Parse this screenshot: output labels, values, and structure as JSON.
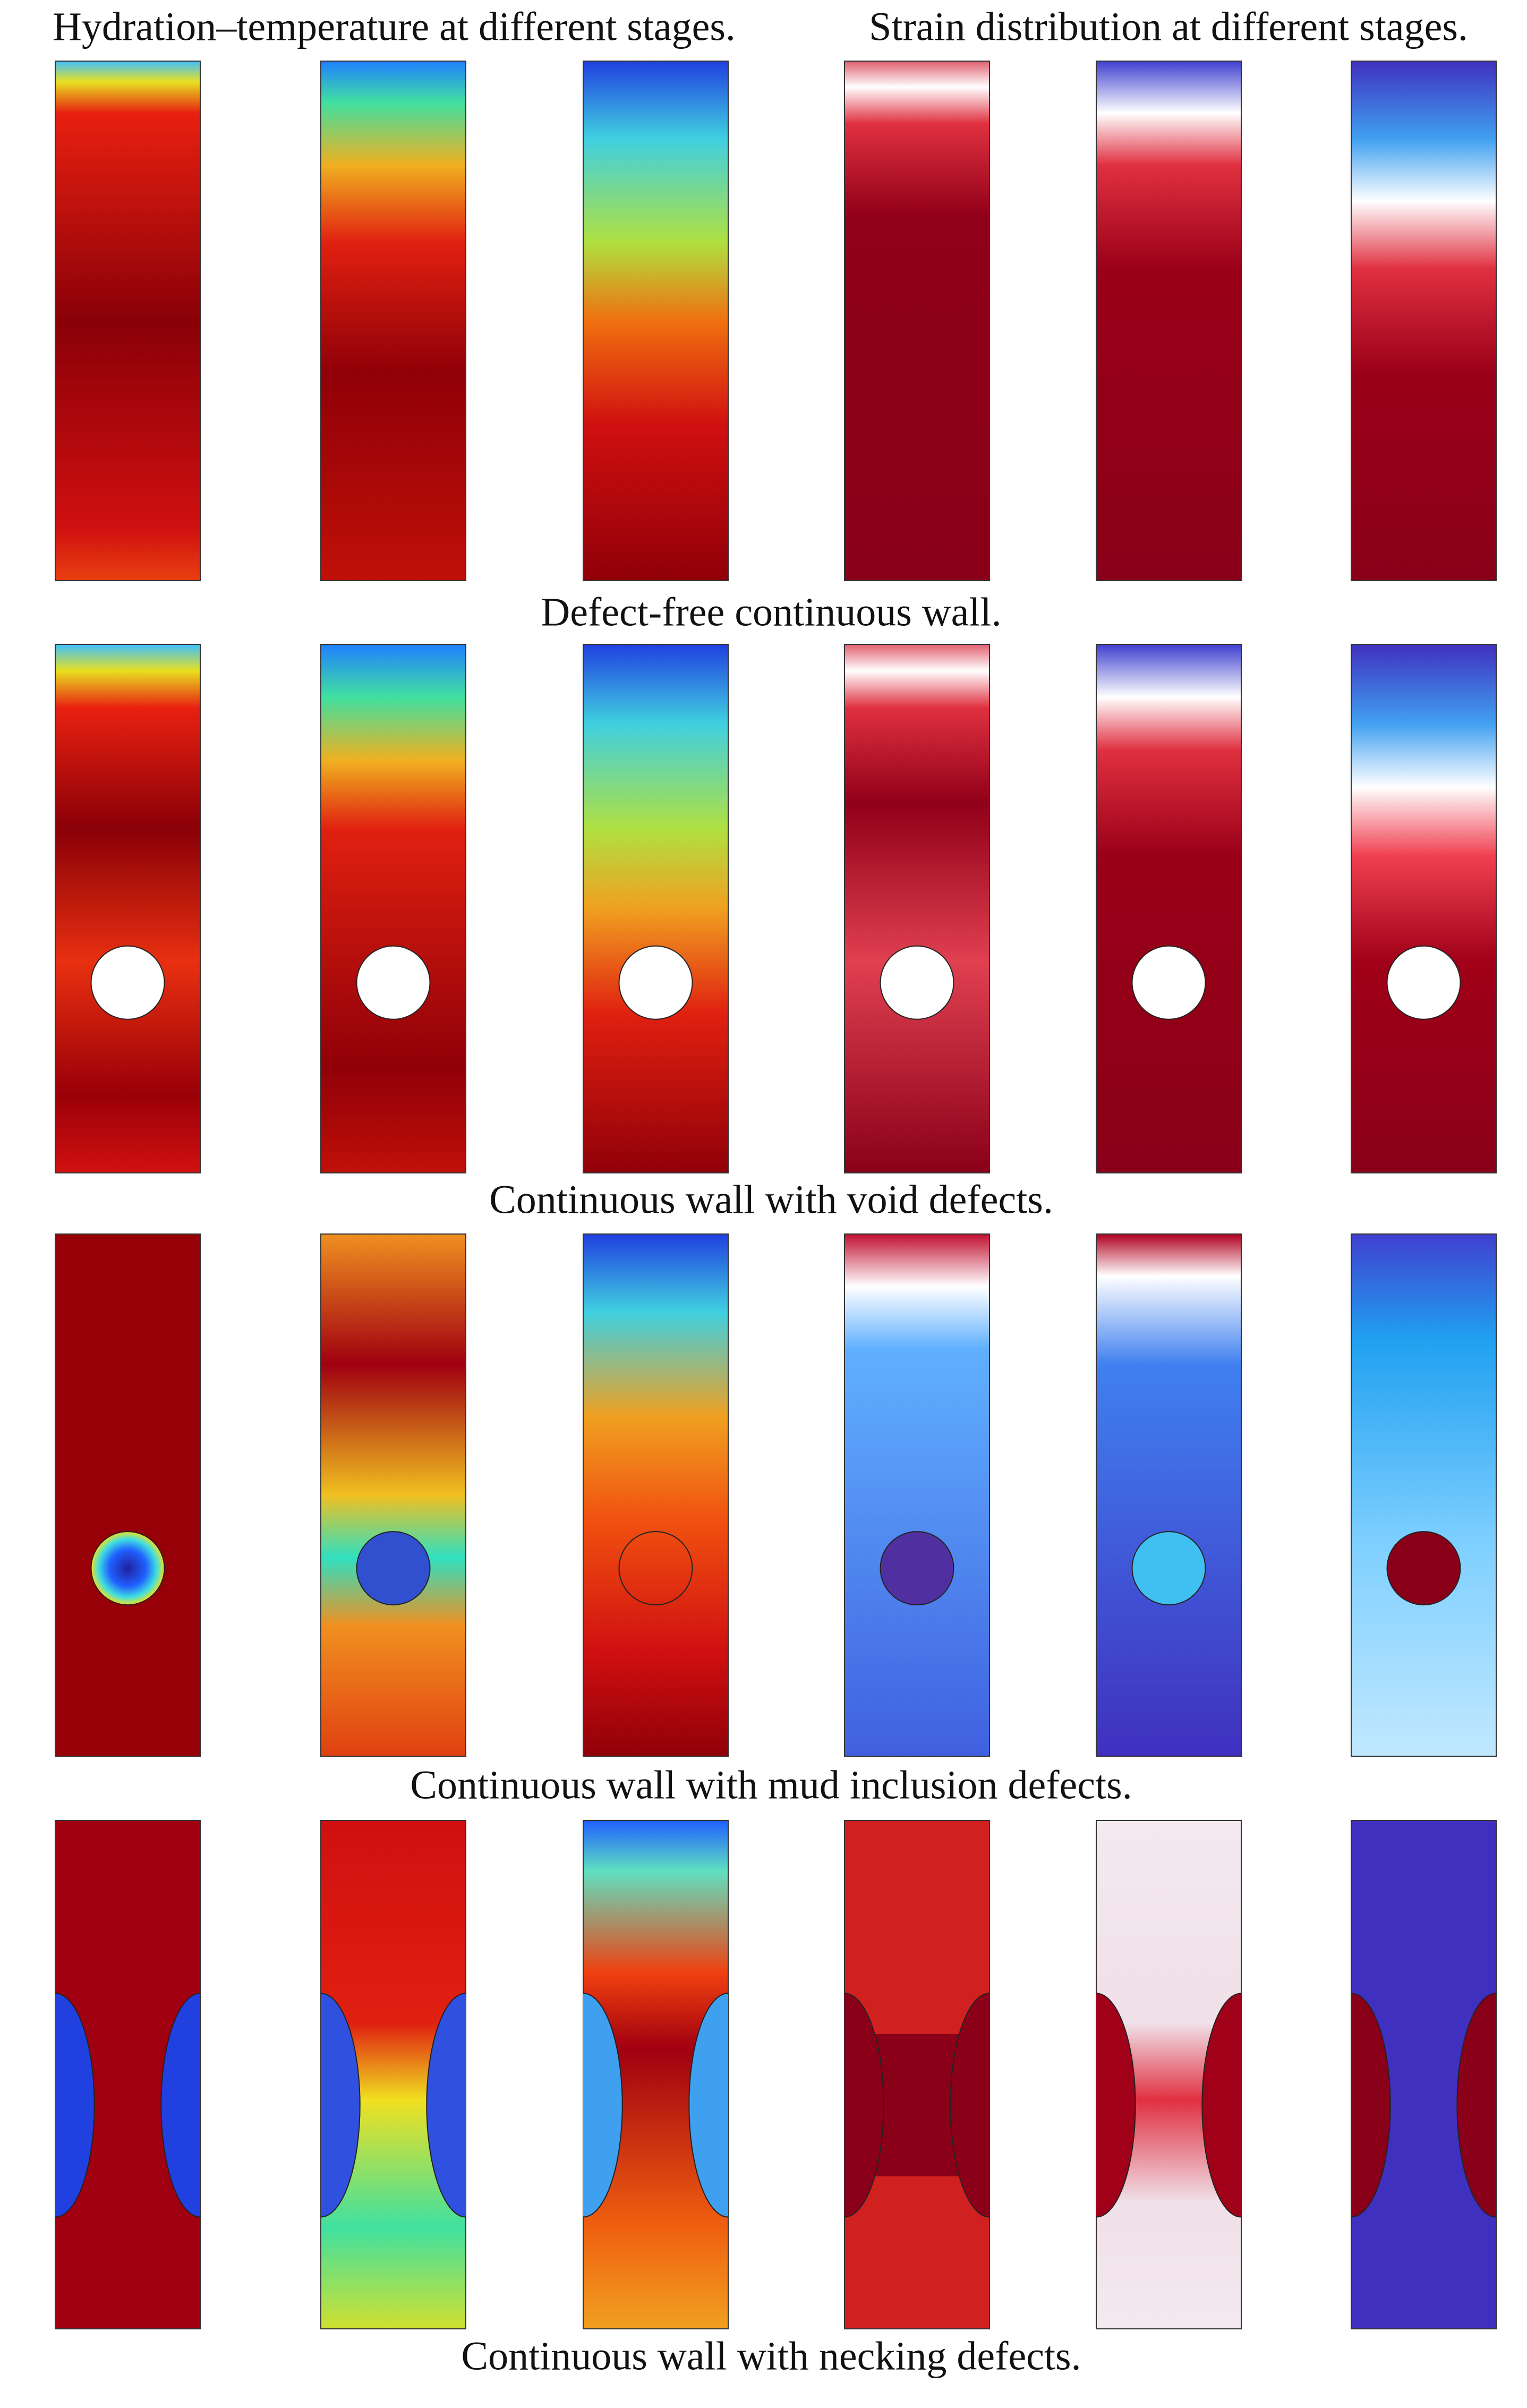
{
  "headers": {
    "temperature": "Hydration–temperature at different stages.",
    "strain": "Strain distribution at different stages."
  },
  "rows": [
    {
      "caption": "Defect-free continuous wall."
    },
    {
      "caption": "Continuous wall with void defects."
    },
    {
      "caption": "Continuous wall with mud inclusion defects."
    },
    {
      "caption": "Continuous wall with necking defects."
    }
  ]
}
